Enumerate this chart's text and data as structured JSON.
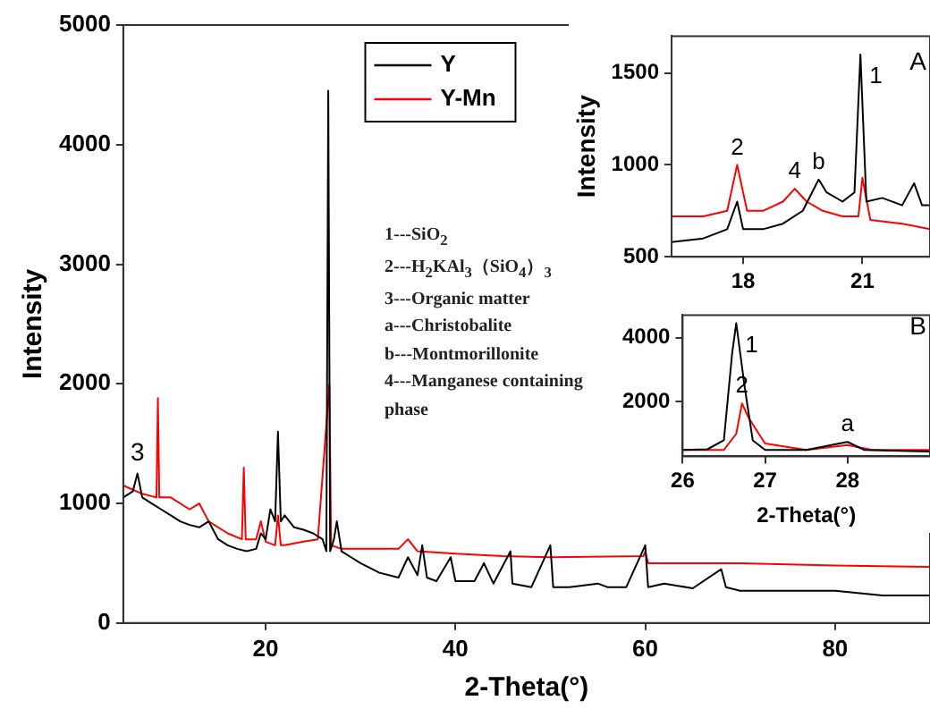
{
  "chart_data": [
    {
      "type": "line",
      "xlabel": "2-Theta(°)",
      "ylabel": "Intensity",
      "xlim": [
        5,
        90
      ],
      "ylim": [
        0,
        5000
      ],
      "xticks": [
        20,
        40,
        60,
        80
      ],
      "yticks": [
        0,
        1000,
        2000,
        3000,
        4000,
        5000
      ],
      "legend": "top",
      "marker": "none",
      "annotations": [
        {
          "text": "3",
          "x": 6.5,
          "y": 1270
        },
        "1---SiO$_{2}$",
        "2---H$_{2}$KAl$_{3}$（SiO$_{4}$）$_{3}$",
        "3---Organic matter",
        "a---Christobalite",
        "b---Montmorillonite",
        "4---Manganese  containing phase"
      ],
      "series": [
        {
          "name": "Y",
          "color": "#000000",
          "x": [
            5,
            6,
            6.5,
            7,
            8,
            9,
            10,
            11,
            12,
            13,
            14,
            15,
            16,
            17,
            18,
            19,
            19.5,
            20,
            20.5,
            21,
            21.3,
            21.6,
            22,
            23,
            24,
            25,
            26,
            26.4,
            26.6,
            26.8,
            27.2,
            27.5,
            28,
            29,
            30,
            32,
            34,
            35,
            36,
            36.5,
            37,
            38,
            39.5,
            40,
            42,
            43,
            44,
            45.8,
            46,
            48,
            50,
            50.3,
            52,
            55,
            56,
            58,
            60,
            60.3,
            62,
            65,
            68,
            68.5,
            70,
            75,
            80,
            85,
            90
          ],
          "values": [
            1050,
            1100,
            1250,
            1050,
            1000,
            950,
            900,
            850,
            820,
            800,
            850,
            700,
            650,
            620,
            600,
            620,
            750,
            700,
            950,
            850,
            1600,
            850,
            900,
            800,
            780,
            750,
            700,
            600,
            4450,
            600,
            700,
            850,
            600,
            550,
            500,
            420,
            380,
            550,
            400,
            650,
            380,
            350,
            550,
            350,
            350,
            500,
            330,
            600,
            330,
            300,
            650,
            300,
            300,
            330,
            300,
            300,
            650,
            300,
            330,
            290,
            450,
            300,
            270,
            270,
            270,
            230,
            230
          ]
        },
        {
          "name": "Y-Mn",
          "color": "#ff0000",
          "x": [
            5,
            7,
            8.5,
            8.65,
            8.8,
            10,
            12,
            13,
            14,
            16,
            17.5,
            17.7,
            17.9,
            19,
            19.5,
            20,
            21,
            21.3,
            21.6,
            22,
            24,
            25.5,
            26.72,
            26.9,
            28,
            30,
            34,
            35,
            36,
            40,
            45,
            50,
            59.8,
            60,
            60.3,
            70,
            80,
            90
          ],
          "values": [
            1150,
            1080,
            1050,
            1880,
            1050,
            1050,
            950,
            1000,
            850,
            750,
            700,
            1300,
            700,
            700,
            850,
            680,
            650,
            900,
            650,
            650,
            680,
            700,
            2000,
            650,
            620,
            620,
            620,
            700,
            600,
            580,
            560,
            550,
            560,
            600,
            500,
            500,
            480,
            470
          ]
        }
      ]
    },
    {
      "type": "line",
      "ylabel": "Intensity",
      "xlim": [
        16.2,
        22.7
      ],
      "ylim": [
        500,
        1700
      ],
      "xticks": [
        18,
        21
      ],
      "yticks": [
        500,
        1000,
        1500
      ],
      "marker": "none",
      "annotations": [
        {
          "text": "2",
          "x": 17.85,
          "y": 1000
        },
        {
          "text": "4",
          "x": 19.3,
          "y": 870
        },
        {
          "text": "b",
          "x": 19.9,
          "y": 920
        },
        {
          "text": "1",
          "x": 20.95,
          "y": 1600
        },
        "A"
      ],
      "series": [
        {
          "color": "#000000",
          "x": [
            16.2,
            17,
            17.6,
            17.85,
            18,
            18.5,
            19,
            19.5,
            19.9,
            20.1,
            20.5,
            20.8,
            20.95,
            21.1,
            21.5,
            22,
            22.3,
            22.5,
            22.7
          ],
          "values": [
            580,
            600,
            650,
            800,
            650,
            650,
            680,
            750,
            920,
            850,
            800,
            850,
            1600,
            800,
            820,
            780,
            900,
            780,
            780
          ]
        },
        {
          "color": "#ff0000",
          "x": [
            16.2,
            17,
            17.6,
            17.85,
            18.1,
            18.5,
            19,
            19.3,
            19.6,
            20,
            20.5,
            20.9,
            21,
            21.2,
            22,
            22.7
          ],
          "values": [
            720,
            720,
            750,
            1000,
            750,
            750,
            800,
            870,
            800,
            750,
            720,
            720,
            930,
            700,
            680,
            650
          ]
        }
      ]
    },
    {
      "type": "line",
      "xlabel": "2-Theta(°)",
      "xlim": [
        26,
        29
      ],
      "ylim": [
        300,
        4700
      ],
      "xticks": [
        26,
        27,
        28
      ],
      "yticks": [
        2000,
        4000
      ],
      "marker": "none",
      "annotations": [
        {
          "text": "1",
          "x": 26.65,
          "y": 4450
        },
        {
          "text": "2",
          "x": 26.72,
          "y": 1950
        },
        {
          "text": "a",
          "x": 28,
          "y": 750
        },
        "B"
      ],
      "series": [
        {
          "color": "#000000",
          "x": [
            26,
            26.3,
            26.5,
            26.6,
            26.65,
            26.75,
            26.85,
            27,
            27.5,
            27.9,
            28,
            28.2,
            29
          ],
          "values": [
            500,
            520,
            800,
            3500,
            4450,
            2500,
            800,
            500,
            500,
            700,
            750,
            500,
            450
          ]
        },
        {
          "color": "#ff0000",
          "x": [
            26,
            26.5,
            26.65,
            26.72,
            26.8,
            26.9,
            27,
            27.5,
            28,
            28.3,
            29
          ],
          "values": [
            500,
            500,
            1000,
            1950,
            1500,
            1100,
            700,
            500,
            650,
            500,
            500
          ]
        }
      ]
    }
  ]
}
